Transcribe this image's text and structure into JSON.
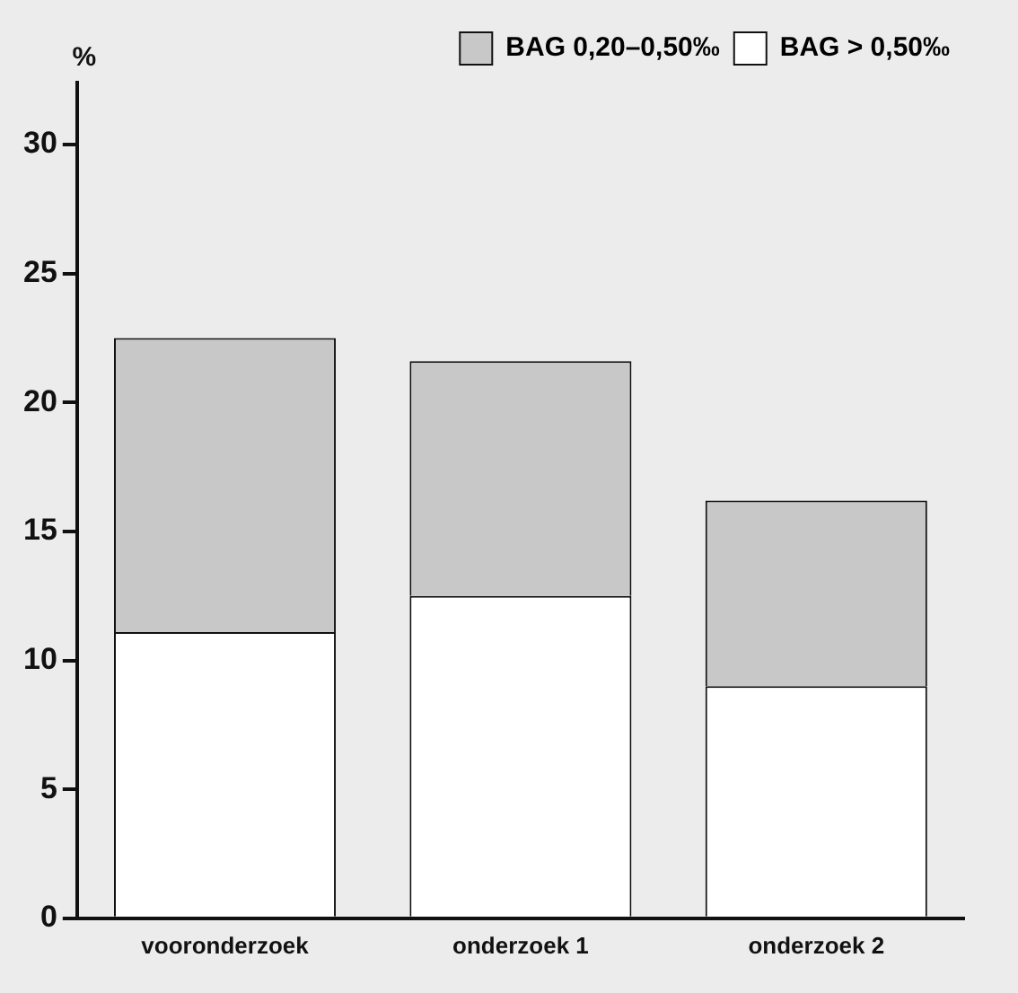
{
  "chart_data": {
    "type": "bar",
    "stacked": true,
    "ylabel": "%",
    "categories": [
      "vooronderzoek",
      "onderzoek 1",
      "onderzoek 2"
    ],
    "series": [
      {
        "name": "BAG > 0,50‰",
        "color": "#ffffff",
        "values": [
          11.1,
          12.5,
          9.0
        ]
      },
      {
        "name": "BAG 0,20–0,50‰",
        "color": "#c8c8c8",
        "values": [
          11.4,
          9.1,
          7.2
        ]
      }
    ],
    "ylim": [
      0,
      32.4
    ],
    "yticks": [
      0,
      5,
      10,
      15,
      20,
      25,
      30
    ],
    "grid": false,
    "legend": "top right"
  }
}
